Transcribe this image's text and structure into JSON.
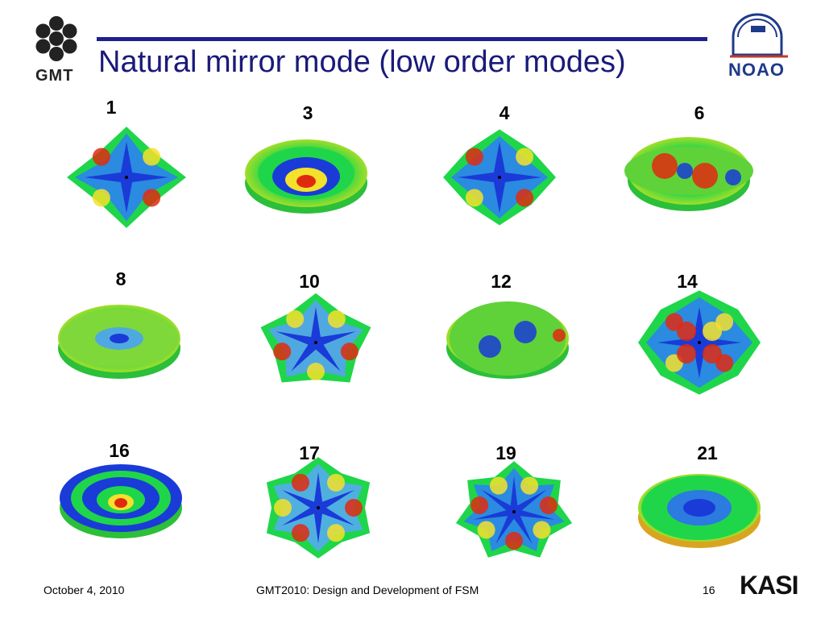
{
  "slide": {
    "title": "Natural mirror mode (low order modes)",
    "footer_left": "October 4, 2010",
    "footer_center": "GMT2010: Design and Development of FSM",
    "page_number": "16"
  },
  "logos": {
    "left": "GMT",
    "right": "NOAO",
    "bottom_right": "KASI"
  },
  "modes": [
    {
      "number": "1",
      "shape": "pinch"
    },
    {
      "number": "3",
      "shape": "bowl"
    },
    {
      "number": "4",
      "shape": "star4"
    },
    {
      "number": "6",
      "shape": "tilt"
    },
    {
      "number": "8",
      "shape": "flat"
    },
    {
      "number": "10",
      "shape": "star5"
    },
    {
      "number": "12",
      "shape": "twin"
    },
    {
      "number": "14",
      "shape": "quad"
    },
    {
      "number": "16",
      "shape": "rings"
    },
    {
      "number": "17",
      "shape": "star6"
    },
    {
      "number": "19",
      "shape": "star7"
    },
    {
      "number": "21",
      "shape": "dish"
    }
  ],
  "colors": {
    "title": "#1a1a7a",
    "rule": "#1f1f8f",
    "low": "#1a3bd8",
    "mid": "#1fd64a",
    "high": "#e02a10"
  }
}
